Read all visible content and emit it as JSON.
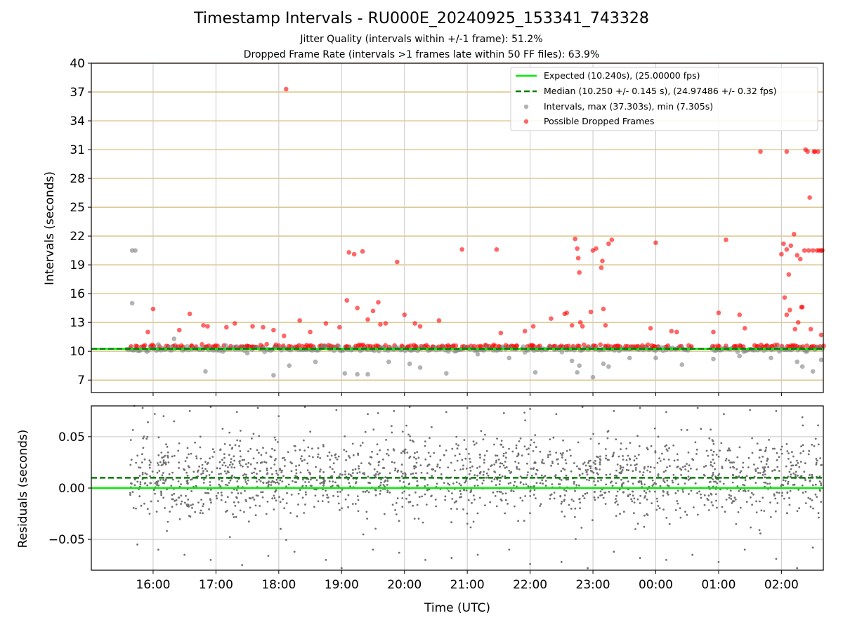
{
  "header": {
    "title": "Timestamp Intervals - RU000E_20240925_153341_743328",
    "subtitle1": "Jitter Quality (intervals within +/-1 frame): 51.2%",
    "subtitle2": "Dropped Frame Rate (intervals >1 frames late within 50 FF files): 63.9%"
  },
  "colors": {
    "expected": "#00ee00",
    "median": "#007f00",
    "intervals": "#808080",
    "dropped": "#ff0000",
    "hgrid": "#d4b870",
    "vgrid": "#c8c8c8",
    "residuals": "#707070"
  },
  "chart_data": [
    {
      "type": "scatter",
      "ylabel": "Intervals (seconds)",
      "xlim": [
        "15:01",
        "02:40"
      ],
      "ylim": [
        5.7,
        40
      ],
      "yticks": [
        7,
        10,
        13,
        16,
        19,
        22,
        25,
        28,
        31,
        34,
        37,
        40
      ],
      "grid": true,
      "legend_position": "upper-right",
      "expected": 10.24,
      "median": 10.25,
      "legend": [
        {
          "label": "Expected (10.240s), (25.00000 fps)",
          "kind": "solid-line"
        },
        {
          "label": "Median (10.250 +/- 0.145 s), (24.97486 +/- 0.32 fps)",
          "kind": "dashed-line"
        },
        {
          "label": "Intervals, max (37.303s), min (7.305s)",
          "kind": "gray-dot"
        },
        {
          "label": "Possible Dropped Frames",
          "kind": "red-dot"
        }
      ],
      "series": [
        {
          "name": "Intervals, max (37.303s), min (7.305s)",
          "values": [
            [
              "15:40",
              20.5
            ],
            [
              "15:43",
              20.5
            ],
            [
              "15:40",
              15.0
            ],
            [
              "16:05",
              10.7
            ],
            [
              "16:20",
              11.3
            ],
            [
              "16:50",
              7.9
            ],
            [
              "17:30",
              9.8
            ],
            [
              "17:55",
              7.5
            ],
            [
              "18:10",
              8.5
            ],
            [
              "18:35",
              8.9
            ],
            [
              "19:03",
              7.7
            ],
            [
              "19:15",
              7.6
            ],
            [
              "19:25",
              7.6
            ],
            [
              "19:45",
              8.9
            ],
            [
              "20:05",
              8.7
            ],
            [
              "20:15",
              8.3
            ],
            [
              "20:40",
              7.7
            ],
            [
              "21:10",
              9.7
            ],
            [
              "21:40",
              9.3
            ],
            [
              "22:05",
              7.8
            ],
            [
              "22:40",
              9.0
            ],
            [
              "22:45",
              7.8
            ],
            [
              "22:47",
              8.5
            ],
            [
              "23:00",
              7.3
            ],
            [
              "23:10",
              8.7
            ],
            [
              "23:15",
              8.4
            ],
            [
              "23:35",
              9.3
            ],
            [
              "00:00",
              9.3
            ],
            [
              "00:25",
              8.6
            ],
            [
              "00:55",
              9.2
            ],
            [
              "01:20",
              9.5
            ],
            [
              "01:50",
              9.3
            ],
            [
              "02:15",
              8.9
            ],
            [
              "02:20",
              8.4
            ],
            [
              "02:30",
              7.9
            ],
            [
              "02:38",
              9.1
            ]
          ]
        },
        {
          "name": "Possible Dropped Frames",
          "values": [
            [
              "16:00",
              14.4
            ],
            [
              "15:55",
              12.0
            ],
            [
              "16:25",
              12.2
            ],
            [
              "16:35",
              13.9
            ],
            [
              "16:48",
              12.7
            ],
            [
              "16:52",
              12.6
            ],
            [
              "17:10",
              12.5
            ],
            [
              "17:18",
              12.9
            ],
            [
              "17:35",
              12.6
            ],
            [
              "17:45",
              12.5
            ],
            [
              "17:55",
              12.2
            ],
            [
              "18:05",
              11.6
            ],
            [
              "18:07",
              37.3
            ],
            [
              "18:20",
              13.2
            ],
            [
              "18:30",
              12.0
            ],
            [
              "18:45",
              12.9
            ],
            [
              "18:58",
              12.5
            ],
            [
              "19:05",
              15.3
            ],
            [
              "19:07",
              20.3
            ],
            [
              "19:12",
              20.1
            ],
            [
              "19:15",
              14.5
            ],
            [
              "19:20",
              20.4
            ],
            [
              "19:25",
              13.3
            ],
            [
              "19:30",
              14.2
            ],
            [
              "19:35",
              15.1
            ],
            [
              "19:37",
              12.8
            ],
            [
              "19:42",
              12.9
            ],
            [
              "19:53",
              19.3
            ],
            [
              "20:00",
              13.8
            ],
            [
              "20:10",
              12.9
            ],
            [
              "20:15",
              12.6
            ],
            [
              "20:33",
              13.2
            ],
            [
              "20:55",
              20.6
            ],
            [
              "21:28",
              20.6
            ],
            [
              "21:32",
              11.9
            ],
            [
              "21:55",
              12.1
            ],
            [
              "22:03",
              12.6
            ],
            [
              "22:20",
              13.4
            ],
            [
              "22:33",
              13.9
            ],
            [
              "22:35",
              14.0
            ],
            [
              "22:40",
              12.7
            ],
            [
              "22:43",
              21.7
            ],
            [
              "22:45",
              20.7
            ],
            [
              "22:46",
              19.7
            ],
            [
              "22:47",
              18.2
            ],
            [
              "22:48",
              13.0
            ],
            [
              "22:50",
              12.6
            ],
            [
              "22:58",
              14.1
            ],
            [
              "23:00",
              20.5
            ],
            [
              "23:03",
              20.7
            ],
            [
              "23:08",
              18.7
            ],
            [
              "23:09",
              19.4
            ],
            [
              "23:10",
              14.4
            ],
            [
              "23:12",
              12.7
            ],
            [
              "23:15",
              21.2
            ],
            [
              "23:18",
              21.6
            ],
            [
              "23:55",
              12.4
            ],
            [
              "00:00",
              21.3
            ],
            [
              "00:15",
              12.1
            ],
            [
              "00:20",
              12.0
            ],
            [
              "00:55",
              12.0
            ],
            [
              "01:00",
              14.0
            ],
            [
              "01:07",
              21.6
            ],
            [
              "01:20",
              13.8
            ],
            [
              "01:25",
              12.4
            ],
            [
              "01:40",
              30.8
            ],
            [
              "02:00",
              20.1
            ],
            [
              "02:02",
              21.2
            ],
            [
              "02:03",
              15.6
            ],
            [
              "02:05",
              20.6
            ],
            [
              "02:05",
              13.8
            ],
            [
              "02:05",
              30.8
            ],
            [
              "02:07",
              18.0
            ],
            [
              "02:08",
              14.3
            ],
            [
              "02:09",
              21.0
            ],
            [
              "02:12",
              22.2
            ],
            [
              "02:13",
              12.3
            ],
            [
              "02:15",
              20.0
            ],
            [
              "02:16",
              13.0
            ],
            [
              "02:18",
              19.6
            ],
            [
              "02:19",
              14.6
            ],
            [
              "02:20",
              14.6
            ],
            [
              "02:22",
              20.5
            ],
            [
              "02:23",
              31.0
            ],
            [
              "02:25",
              30.8
            ],
            [
              "02:26",
              20.5
            ],
            [
              "02:27",
              26.0
            ],
            [
              "02:28",
              12.3
            ],
            [
              "02:30",
              20.5
            ],
            [
              "02:31",
              30.8
            ],
            [
              "02:32",
              30.8
            ],
            [
              "02:34",
              20.5
            ],
            [
              "02:35",
              30.8
            ],
            [
              "02:36",
              20.5
            ],
            [
              "02:38",
              20.5
            ],
            [
              "02:39",
              20.5
            ],
            [
              "02:38",
              11.7
            ]
          ]
        }
      ]
    },
    {
      "type": "scatter",
      "ylabel": "Residuals (seconds)",
      "xlabel": "Time (UTC)",
      "xlim": [
        "15:01",
        "02:40"
      ],
      "ylim": [
        -0.08,
        0.08
      ],
      "yticks": [
        "−0.05",
        "0.00",
        "0.05"
      ],
      "xticks": [
        "16:00",
        "17:00",
        "18:00",
        "19:00",
        "20:00",
        "21:00",
        "22:00",
        "23:00",
        "00:00",
        "01:00",
        "02:00"
      ],
      "grid": true,
      "expected": 0.0,
      "median": 0.01,
      "series": [
        {
          "name": "Residuals",
          "values": [
            [
              "15:42",
              0.08
            ],
            [
              "15:50",
              0.078
            ],
            [
              "16:10",
              0.07
            ],
            [
              "16:20",
              0.065
            ],
            [
              "16:35",
              0.075
            ],
            [
              "16:55",
              0.079
            ],
            [
              "17:20",
              0.074
            ],
            [
              "17:40",
              0.078
            ],
            [
              "18:00",
              0.07
            ],
            [
              "18:25",
              0.079
            ],
            [
              "18:55",
              0.076
            ],
            [
              "19:25",
              0.072
            ],
            [
              "19:50",
              0.075
            ],
            [
              "20:05",
              0.079
            ],
            [
              "20:40",
              0.074
            ],
            [
              "21:00",
              0.078
            ],
            [
              "21:35",
              0.073
            ],
            [
              "22:00",
              0.077
            ],
            [
              "22:25",
              0.072
            ],
            [
              "22:50",
              0.079
            ],
            [
              "23:20",
              0.075
            ],
            [
              "23:45",
              0.078
            ],
            [
              "00:10",
              0.074
            ],
            [
              "00:40",
              0.078
            ],
            [
              "01:05",
              0.072
            ],
            [
              "01:30",
              0.076
            ],
            [
              "01:55",
              0.075
            ],
            [
              "02:20",
              0.069
            ],
            [
              "02:35",
              0.061
            ],
            [
              "15:45",
              -0.055
            ],
            [
              "16:05",
              -0.06
            ],
            [
              "16:30",
              -0.065
            ],
            [
              "16:55",
              -0.07
            ],
            [
              "17:25",
              -0.075
            ],
            [
              "17:50",
              -0.066
            ],
            [
              "18:15",
              -0.062
            ],
            [
              "18:45",
              -0.07
            ],
            [
              "19:00",
              -0.078
            ],
            [
              "19:30",
              -0.06
            ],
            [
              "19:55",
              -0.063
            ],
            [
              "20:20",
              -0.07
            ],
            [
              "20:45",
              -0.068
            ],
            [
              "21:10",
              -0.065
            ],
            [
              "21:40",
              -0.06
            ],
            [
              "22:00",
              -0.074
            ],
            [
              "22:30",
              -0.072
            ],
            [
              "22:55",
              -0.078
            ],
            [
              "23:20",
              -0.062
            ],
            [
              "23:45",
              -0.068
            ],
            [
              "00:10",
              -0.07
            ],
            [
              "00:35",
              -0.065
            ],
            [
              "01:00",
              -0.072
            ],
            [
              "01:25",
              -0.06
            ],
            [
              "01:55",
              -0.069
            ],
            [
              "02:15",
              -0.078
            ],
            [
              "02:30",
              -0.058
            ]
          ]
        }
      ]
    }
  ]
}
